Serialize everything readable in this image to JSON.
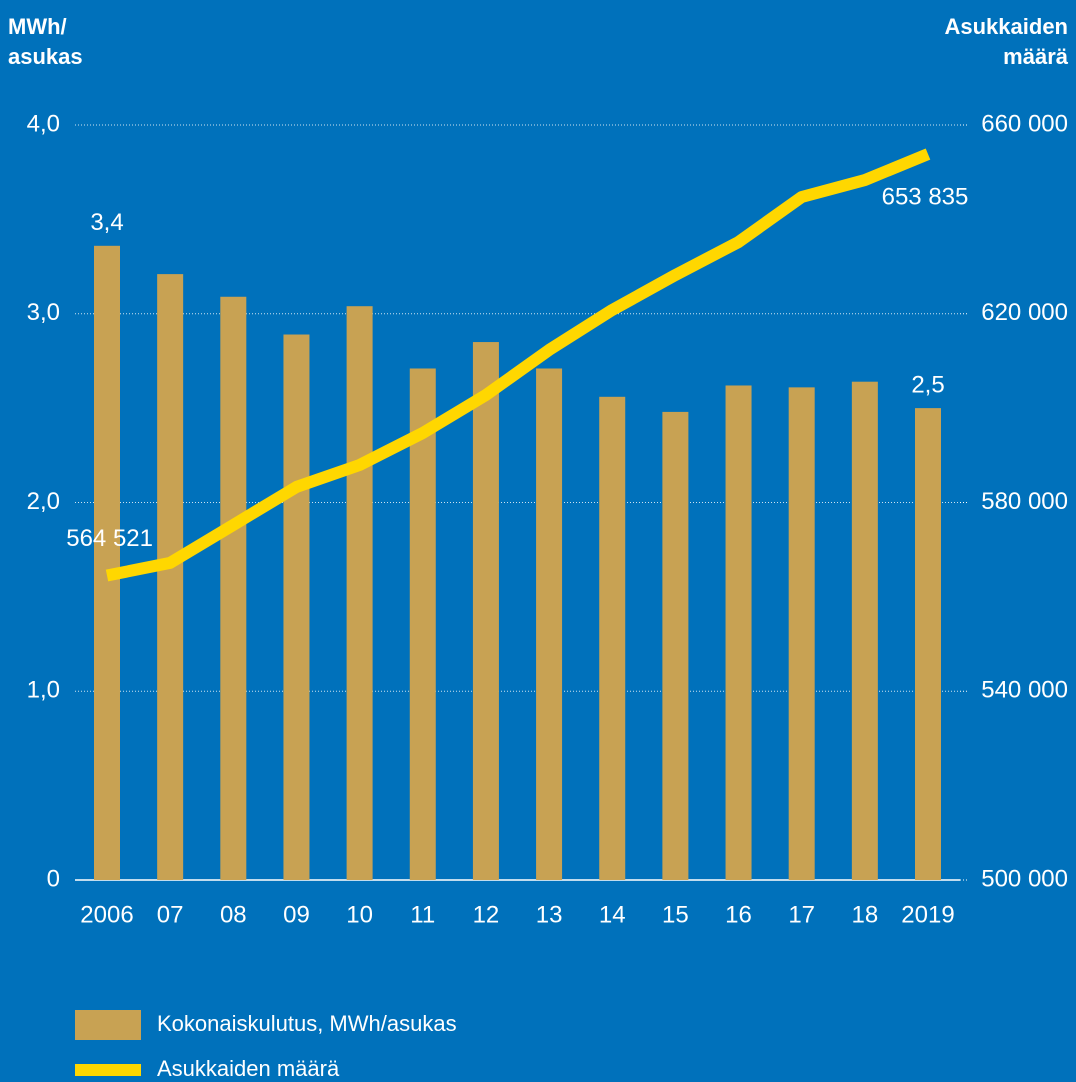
{
  "chart_data": {
    "type": "bar",
    "ylabel": [
      "MWh/",
      "asukas"
    ],
    "y2label": [
      "Asukkaiden",
      "määrä"
    ],
    "categories": [
      "2006",
      "07",
      "08",
      "09",
      "10",
      "11",
      "12",
      "13",
      "14",
      "15",
      "16",
      "17",
      "18",
      "2019"
    ],
    "ylim": [
      0,
      4
    ],
    "yticks": [
      0,
      {
        "value": 1,
        "label": "1,0"
      },
      {
        "value": 2,
        "label": "2,0"
      },
      {
        "value": 3,
        "label": "3,0"
      },
      {
        "value": 4,
        "label": "4,0"
      }
    ],
    "y2lim": [
      500000,
      660000
    ],
    "y2ticks": [
      {
        "value": 500000,
        "label": "500 000"
      },
      {
        "value": 540000,
        "label": "540 000"
      },
      {
        "value": 580000,
        "label": "580 000"
      },
      {
        "value": 620000,
        "label": "620 000"
      },
      {
        "value": 660000,
        "label": "660 000"
      }
    ],
    "grid": true,
    "series": [
      {
        "name": "Kokonaiskulutus, MWh/asukas",
        "type": "bar",
        "color": "#c8a253",
        "values": [
          3.36,
          3.21,
          3.09,
          2.89,
          3.04,
          2.71,
          2.85,
          2.71,
          2.56,
          2.48,
          2.62,
          2.61,
          2.64,
          2.5
        ],
        "value_labels": [
          "3,4",
          null,
          null,
          null,
          null,
          null,
          null,
          null,
          null,
          null,
          null,
          null,
          null,
          "2,5"
        ]
      },
      {
        "name": "Asukkaiden määrä",
        "type": "line",
        "axis": "y2",
        "color": "#ffd700",
        "values": [
          564521,
          567200,
          575240,
          583290,
          587950,
          594730,
          602780,
          612320,
          620800,
          628200,
          635200,
          644740,
          648340,
          653835
        ],
        "value_labels": [
          "564 521",
          null,
          null,
          null,
          null,
          null,
          null,
          null,
          null,
          null,
          null,
          null,
          null,
          "653 835"
        ]
      }
    ]
  }
}
